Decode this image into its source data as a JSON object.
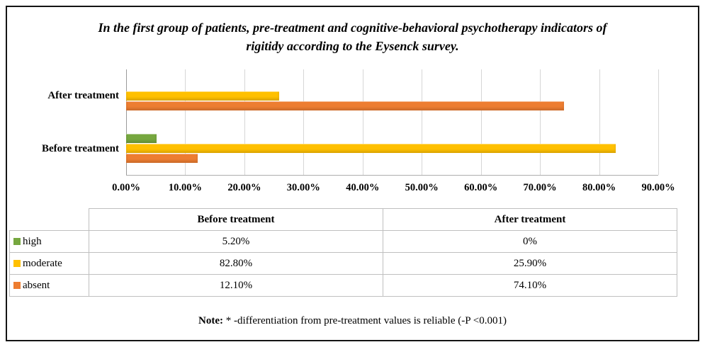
{
  "chart_data": {
    "type": "bar",
    "orientation": "horizontal",
    "title": "In the first group of patients, pre-treatment and cognitive-behavioral psychotherapy indicators of rigitidy according to the Eysenck survey.",
    "categories": [
      "After treatment",
      "Before treatment"
    ],
    "series": [
      {
        "name": "high",
        "color": "#76a73f",
        "values": [
          0,
          5.2
        ]
      },
      {
        "name": "moderate",
        "color": "#ffc000",
        "values": [
          25.9,
          82.8
        ]
      },
      {
        "name": "absent",
        "color": "#ed7d31",
        "values": [
          74.1,
          12.1
        ]
      }
    ],
    "x_ticks": [
      "0.00%",
      "10.00%",
      "20.00%",
      "30.00%",
      "40.00%",
      "50.00%",
      "60.00%",
      "70.00%",
      "80.00%",
      "90.00%"
    ],
    "xlim": [
      0,
      90
    ],
    "grid": true,
    "legend_position": "in-table"
  },
  "table": {
    "columns": [
      "",
      "Before treatment",
      "After treatment"
    ],
    "rows": [
      {
        "label": "high",
        "color": "#76a73f",
        "values": [
          "5.20%",
          "0%"
        ]
      },
      {
        "label": "moderate",
        "color": "#ffc000",
        "values": [
          "82.80%",
          "25.90%"
        ]
      },
      {
        "label": "absent",
        "color": "#ed7d31",
        "values": [
          "12.10%",
          "74.10%"
        ]
      }
    ]
  },
  "note": {
    "label": "Note:",
    "text": "* -differentiation from pre-treatment values is reliable (-P <0.001)"
  }
}
